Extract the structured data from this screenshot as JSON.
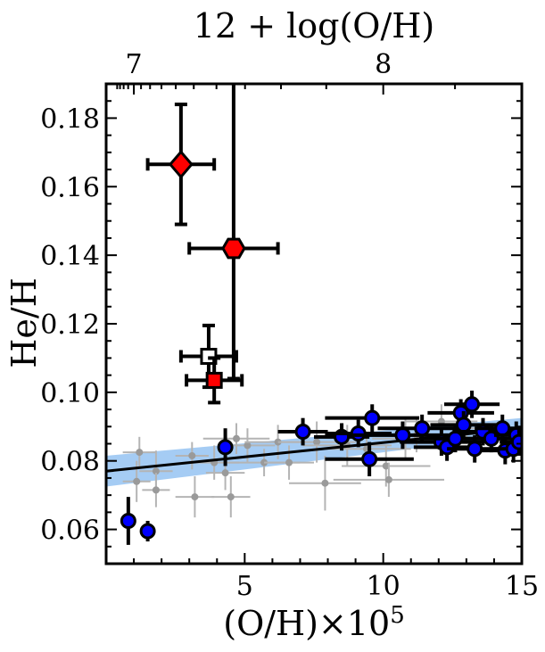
{
  "chart_data": {
    "type": "scatter",
    "title": "",
    "xlabel": "(O/H)×10^5",
    "xlabel_parts": {
      "main": "(O/H)×10",
      "sup": "5"
    },
    "ylabel": "He/H",
    "top_xlabel": "12 + log(O/H)",
    "xlim": [
      0,
      15
    ],
    "ylim": [
      0.05,
      0.19
    ],
    "xticks": [
      5,
      10,
      15
    ],
    "xtick_labels": [
      "5",
      "10",
      "15"
    ],
    "yticks": [
      0.06,
      0.08,
      0.1,
      0.12,
      0.14,
      0.16,
      0.18
    ],
    "ytick_labels": [
      "0.06",
      "0.08",
      "0.10",
      "0.12",
      "0.14",
      "0.16",
      "0.18"
    ],
    "top_xticks": [
      7,
      8
    ],
    "top_xtick_labels": [
      "7",
      "8"
    ],
    "fit_line": {
      "x": [
        0,
        15
      ],
      "y": [
        0.077,
        0.0895
      ],
      "band_lower": [
        0.0725,
        0.0875
      ],
      "band_upper": [
        0.0815,
        0.0925
      ],
      "color": "#000000",
      "band_color": "#7fb7f0"
    },
    "series": [
      {
        "marker": "diamond",
        "color": "#ff0000",
        "points": [
          {
            "x": 2.7,
            "y": 0.1665,
            "xerr": 1.2,
            "yerr": 0.0175
          }
        ]
      },
      {
        "marker": "hexagon",
        "color": "#ff0000",
        "points": [
          {
            "x": 4.6,
            "y": 0.142,
            "xerr": 1.6,
            "yerr_low": 0.038,
            "yerr_high": 0.05
          }
        ]
      },
      {
        "marker": "square-open",
        "color": "#ffffff",
        "points": [
          {
            "x": 3.7,
            "y": 0.1105,
            "xerr": 1.0,
            "yerr": 0.009
          }
        ]
      },
      {
        "marker": "square",
        "color": "#ff0000",
        "points": [
          {
            "x": 3.9,
            "y": 0.1035,
            "xerr": 1.0,
            "yerr": 0.0065
          }
        ]
      },
      {
        "marker": "circle",
        "color": "#0000ff",
        "points": [
          {
            "x": 0.8,
            "y": 0.0625,
            "xerr": 0,
            "yerr": 0.007
          },
          {
            "x": 1.5,
            "y": 0.0595,
            "xerr": 0,
            "yerr": 0.003
          },
          {
            "x": 4.3,
            "y": 0.084,
            "xerr": 0,
            "yerr": 0.0055
          },
          {
            "x": 7.1,
            "y": 0.0885,
            "xerr": 0.9,
            "yerr": 0.004
          },
          {
            "x": 8.5,
            "y": 0.087,
            "xerr": 1.0,
            "yerr": 0.004
          },
          {
            "x": 9.1,
            "y": 0.088,
            "xerr": 1.2,
            "yerr": 0.004
          },
          {
            "x": 9.5,
            "y": 0.0805,
            "xerr": 1.6,
            "yerr": 0.005
          },
          {
            "x": 9.6,
            "y": 0.0925,
            "xerr": 1.7,
            "yerr": 0.004
          },
          {
            "x": 10.7,
            "y": 0.0875,
            "xerr": 1.8,
            "yerr": 0.004
          },
          {
            "x": 11.4,
            "y": 0.0895,
            "xerr": 1.6,
            "yerr": 0.004
          },
          {
            "x": 12.1,
            "y": 0.0855,
            "xerr": 1.5,
            "yerr": 0.004
          },
          {
            "x": 12.3,
            "y": 0.084,
            "xerr": 1.2,
            "yerr": 0.004
          },
          {
            "x": 12.6,
            "y": 0.0865,
            "xerr": 1.3,
            "yerr": 0.004
          },
          {
            "x": 12.8,
            "y": 0.094,
            "xerr": 1.2,
            "yerr": 0.004
          },
          {
            "x": 12.9,
            "y": 0.0905,
            "xerr": 1.2,
            "yerr": 0.004
          },
          {
            "x": 13.2,
            "y": 0.0965,
            "xerr": 1.0,
            "yerr": 0.004
          },
          {
            "x": 13.3,
            "y": 0.0835,
            "xerr": 1.0,
            "yerr": 0.004
          },
          {
            "x": 13.6,
            "y": 0.0885,
            "xerr": 1.1,
            "yerr": 0.004
          },
          {
            "x": 13.9,
            "y": 0.0865,
            "xerr": 1.0,
            "yerr": 0.004
          },
          {
            "x": 14.3,
            "y": 0.0895,
            "xerr": 1.0,
            "yerr": 0.004
          },
          {
            "x": 14.4,
            "y": 0.083,
            "xerr": 0.9,
            "yerr": 0.004
          },
          {
            "x": 14.7,
            "y": 0.0835,
            "xerr": 0.8,
            "yerr": 0.004
          },
          {
            "x": 14.8,
            "y": 0.0875,
            "xerr": 0.8,
            "yerr": 0.004
          },
          {
            "x": 14.9,
            "y": 0.0855,
            "xerr": 0.7,
            "yerr": 0.004
          }
        ]
      },
      {
        "marker": "dot",
        "color": "#9a9a9a",
        "points": [
          {
            "x": 1.1,
            "y": 0.074,
            "xerr": 0.5,
            "yerr": 0.006
          },
          {
            "x": 1.2,
            "y": 0.0825,
            "xerr": 0.6,
            "yerr": 0.0045
          },
          {
            "x": 1.8,
            "y": 0.077,
            "xerr": 0.6,
            "yerr": 0.006
          },
          {
            "x": 1.8,
            "y": 0.0715,
            "xerr": 0.5,
            "yerr": 0.005
          },
          {
            "x": 3.1,
            "y": 0.0815,
            "xerr": 0.6,
            "yerr": 0.004
          },
          {
            "x": 3.2,
            "y": 0.0695,
            "xerr": 0.7,
            "yerr": 0.006
          },
          {
            "x": 3.9,
            "y": 0.0795,
            "xerr": 0.9,
            "yerr": 0.005
          },
          {
            "x": 4.3,
            "y": 0.0765,
            "xerr": 0.7,
            "yerr": 0.005
          },
          {
            "x": 4.5,
            "y": 0.0695,
            "xerr": 0.7,
            "yerr": 0.006
          },
          {
            "x": 4.7,
            "y": 0.0865,
            "xerr": 1.2,
            "yerr": 0.0045
          },
          {
            "x": 5.1,
            "y": 0.0845,
            "xerr": 1.0,
            "yerr": 0.005
          },
          {
            "x": 5.7,
            "y": 0.0795,
            "xerr": 1.3,
            "yerr": 0.004
          },
          {
            "x": 6.2,
            "y": 0.0855,
            "xerr": 1.2,
            "yerr": 0.005
          },
          {
            "x": 6.6,
            "y": 0.0795,
            "xerr": 0.9,
            "yerr": 0.005
          },
          {
            "x": 7.6,
            "y": 0.0855,
            "xerr": 1.4,
            "yerr": 0.006
          },
          {
            "x": 7.9,
            "y": 0.0735,
            "xerr": 1.3,
            "yerr": 0.008
          },
          {
            "x": 8.7,
            "y": 0.0845,
            "xerr": 1.6,
            "yerr": 0.006
          },
          {
            "x": 9.4,
            "y": 0.0835,
            "xerr": 1.6,
            "yerr": 0.005
          },
          {
            "x": 10.1,
            "y": 0.0785,
            "xerr": 1.6,
            "yerr": 0.006
          },
          {
            "x": 10.2,
            "y": 0.0745,
            "xerr": 2.0,
            "yerr": 0.005
          },
          {
            "x": 10.8,
            "y": 0.0865,
            "xerr": 1.2,
            "yerr": 0.006
          },
          {
            "x": 11.2,
            "y": 0.0875,
            "xerr": 1.4,
            "yerr": 0.005
          },
          {
            "x": 12.1,
            "y": 0.0915,
            "xerr": 1.3,
            "yerr": 0.005
          },
          {
            "x": 13.0,
            "y": 0.0895,
            "xerr": 1.1,
            "yerr": 0.004
          }
        ]
      }
    ]
  }
}
